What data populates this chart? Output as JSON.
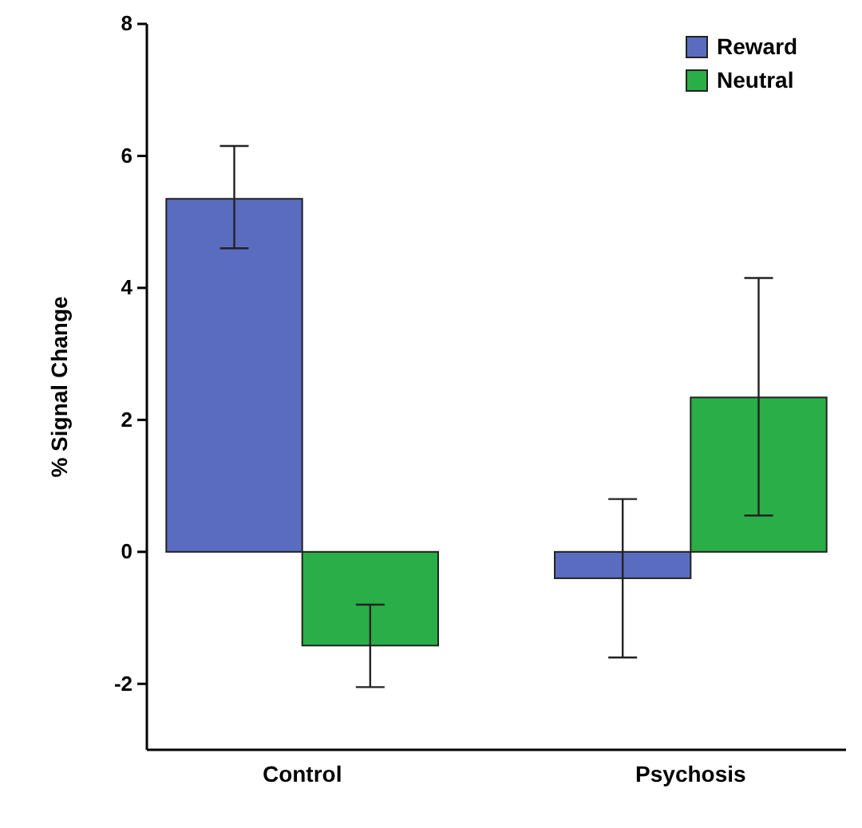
{
  "chart_data": {
    "type": "bar",
    "ylabel": "% Signal Change",
    "categories": [
      "Control",
      "Psychosis"
    ],
    "series": [
      {
        "name": "Reward",
        "color": "#5a6cc0",
        "values": [
          5.35,
          -0.4
        ],
        "errors": [
          [
            4.6,
            6.15
          ],
          [
            -1.6,
            0.8
          ]
        ]
      },
      {
        "name": "Neutral",
        "color": "#2aae48",
        "values": [
          -1.42,
          2.34
        ],
        "errors": [
          [
            -2.05,
            -0.8
          ],
          [
            0.55,
            4.15
          ]
        ]
      }
    ],
    "ylim": [
      -3,
      8
    ],
    "yticks": [
      -2,
      0,
      2,
      4,
      6,
      8
    ],
    "legend": "top right",
    "grid": false
  }
}
